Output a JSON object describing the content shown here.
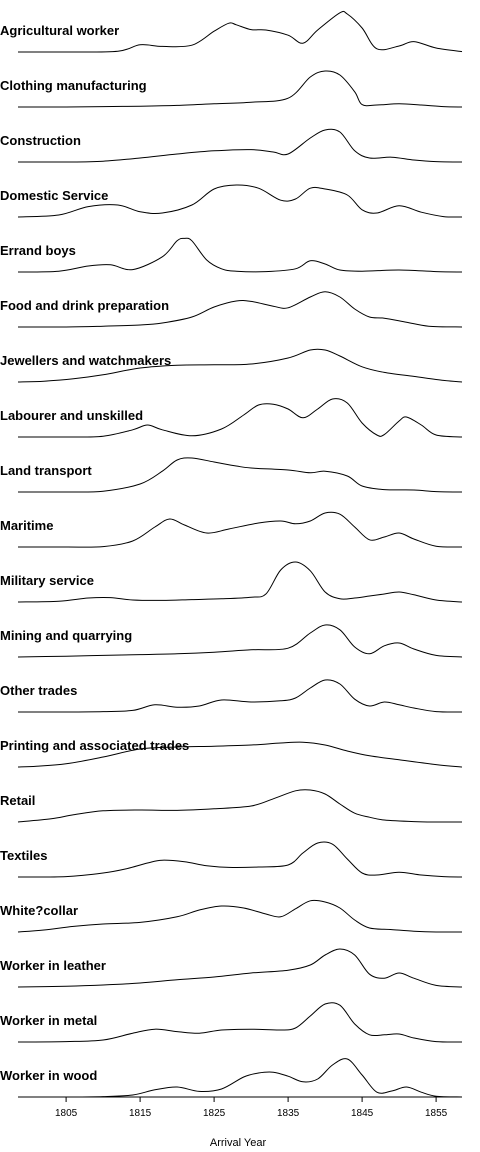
{
  "chart_data": {
    "type": "ridgeline",
    "xlabel": "Arrival Year",
    "xlim": [
      1798.5,
      1858.5
    ],
    "xticks": [
      1805,
      1815,
      1825,
      1835,
      1845,
      1855
    ],
    "categories": [
      "Agricultural worker",
      "Clothing manufacturing",
      "Construction",
      "Domestic Service",
      "Errand boys",
      "Food and drink preparation",
      "Jewellers and watchmakers",
      "Labourer and unskilled",
      "Land transport",
      "Maritime",
      "Military service",
      "Mining and quarrying",
      "Other trades",
      "Printing and associated trades",
      "Retail",
      "Textiles",
      "White?collar",
      "Worker in leather",
      "Worker in metal",
      "Worker in wood"
    ],
    "series": [
      {
        "name": "Agricultural worker",
        "x": [
          1798.5,
          1805,
          1812,
          1815,
          1818,
          1822,
          1825,
          1827,
          1828,
          1830,
          1832,
          1835,
          1837,
          1839,
          1842,
          1843,
          1845,
          1847,
          1850,
          1852,
          1855,
          1858.5
        ],
        "y": [
          0,
          0,
          0.02,
          0.18,
          0.14,
          0.17,
          0.52,
          0.72,
          0.68,
          0.56,
          0.55,
          0.42,
          0.22,
          0.55,
          0.98,
          0.95,
          0.6,
          0.08,
          0.15,
          0.26,
          0.1,
          0.01
        ]
      },
      {
        "name": "Clothing manufacturing",
        "x": [
          1798.5,
          1805,
          1810,
          1815,
          1820,
          1825,
          1830,
          1835,
          1838,
          1840,
          1842,
          1844,
          1845,
          1847,
          1850,
          1853,
          1856,
          1858.5
        ],
        "y": [
          0,
          0,
          0.01,
          0.02,
          0.04,
          0.08,
          0.12,
          0.22,
          0.75,
          0.9,
          0.8,
          0.38,
          0.06,
          0.05,
          0.08,
          0.05,
          0.01,
          0
        ]
      },
      {
        "name": "Construction",
        "x": [
          1798.5,
          1805,
          1810,
          1815,
          1820,
          1825,
          1830,
          1833,
          1835,
          1838,
          1840,
          1842,
          1844,
          1846,
          1849,
          1852,
          1855,
          1858.5
        ],
        "y": [
          0,
          0,
          0.02,
          0.1,
          0.2,
          0.28,
          0.31,
          0.25,
          0.2,
          0.6,
          0.8,
          0.75,
          0.28,
          0.1,
          0.12,
          0.05,
          0.01,
          0
        ]
      },
      {
        "name": "Domestic Service",
        "x": [
          1798.5,
          1804,
          1808,
          1812,
          1815,
          1818,
          1822,
          1825,
          1828,
          1831,
          1834,
          1836,
          1838,
          1840,
          1843,
          1845,
          1847,
          1850,
          1853,
          1856,
          1858.5
        ],
        "y": [
          0,
          0.05,
          0.26,
          0.3,
          0.13,
          0.1,
          0.3,
          0.7,
          0.8,
          0.72,
          0.42,
          0.45,
          0.72,
          0.7,
          0.55,
          0.18,
          0.1,
          0.28,
          0.12,
          0.01,
          0
        ]
      },
      {
        "name": "Errand boys",
        "x": [
          1798.5,
          1804,
          1808,
          1811,
          1814,
          1818,
          1820,
          1821,
          1822,
          1824,
          1826,
          1828,
          1832,
          1836,
          1838,
          1840,
          1842,
          1845,
          1850,
          1855,
          1858.5
        ],
        "y": [
          0,
          0.02,
          0.15,
          0.18,
          0.06,
          0.38,
          0.78,
          0.84,
          0.78,
          0.3,
          0.08,
          0.02,
          0.01,
          0.08,
          0.28,
          0.2,
          0.05,
          0.02,
          0.05,
          0.01,
          0
        ]
      },
      {
        "name": "Food and drink preparation",
        "x": [
          1798.5,
          1805,
          1810,
          1815,
          1818,
          1822,
          1825,
          1828,
          1830,
          1833,
          1835,
          1838,
          1840,
          1842,
          1844,
          1846,
          1848,
          1851,
          1854,
          1858.5
        ],
        "y": [
          0,
          0,
          0.02,
          0.05,
          0.1,
          0.25,
          0.5,
          0.65,
          0.64,
          0.52,
          0.48,
          0.75,
          0.88,
          0.75,
          0.45,
          0.25,
          0.22,
          0.12,
          0.02,
          0
        ]
      },
      {
        "name": "Jewellers and watchmakers",
        "x": [
          1798.5,
          1802,
          1806,
          1810,
          1815,
          1820,
          1825,
          1830,
          1835,
          1838,
          1840,
          1842,
          1845,
          1848,
          1852,
          1856,
          1858.5
        ],
        "y": [
          0,
          0.02,
          0.08,
          0.18,
          0.35,
          0.42,
          0.43,
          0.45,
          0.6,
          0.8,
          0.8,
          0.65,
          0.38,
          0.24,
          0.14,
          0.04,
          0
        ]
      },
      {
        "name": "Labourer and unskilled",
        "x": [
          1798.5,
          1805,
          1810,
          1814,
          1816,
          1818,
          1822,
          1826,
          1829,
          1831,
          1833,
          1835,
          1837,
          1839,
          1841,
          1843,
          1845,
          1847,
          1848,
          1850,
          1851,
          1853,
          1855,
          1858.5
        ],
        "y": [
          0,
          0,
          0.02,
          0.18,
          0.3,
          0.18,
          0.03,
          0.2,
          0.55,
          0.8,
          0.82,
          0.7,
          0.48,
          0.7,
          0.95,
          0.85,
          0.35,
          0.05,
          0.06,
          0.4,
          0.5,
          0.3,
          0.05,
          0
        ]
      },
      {
        "name": "Land transport",
        "x": [
          1798.5,
          1805,
          1810,
          1815,
          1818,
          1820,
          1822,
          1825,
          1828,
          1830,
          1835,
          1838,
          1840,
          1843,
          1845,
          1848,
          1852,
          1855,
          1858.5
        ],
        "y": [
          0,
          0,
          0.02,
          0.2,
          0.52,
          0.8,
          0.85,
          0.75,
          0.65,
          0.6,
          0.55,
          0.48,
          0.52,
          0.4,
          0.15,
          0.06,
          0.05,
          0.01,
          0
        ]
      },
      {
        "name": "Maritime",
        "x": [
          1798.5,
          1805,
          1810,
          1814,
          1817,
          1819,
          1821,
          1824,
          1827,
          1831,
          1834,
          1836,
          1838,
          1840,
          1842,
          1844,
          1846,
          1848,
          1850,
          1852,
          1855,
          1858.5
        ],
        "y": [
          0,
          0,
          0.01,
          0.15,
          0.5,
          0.7,
          0.55,
          0.35,
          0.45,
          0.6,
          0.65,
          0.58,
          0.65,
          0.85,
          0.82,
          0.5,
          0.18,
          0.25,
          0.35,
          0.2,
          0.02,
          0
        ]
      },
      {
        "name": "Military service",
        "x": [
          1798.5,
          1804,
          1808,
          1811,
          1814,
          1818,
          1822,
          1826,
          1830,
          1832,
          1834,
          1836,
          1838,
          1840,
          1842,
          1844,
          1846,
          1848,
          1850,
          1852,
          1855,
          1858.5
        ],
        "y": [
          0,
          0.02,
          0.1,
          0.11,
          0.05,
          0.04,
          0.06,
          0.08,
          0.12,
          0.2,
          0.8,
          1.0,
          0.78,
          0.25,
          0.08,
          0.1,
          0.15,
          0.2,
          0.25,
          0.18,
          0.05,
          0
        ]
      },
      {
        "name": "Mining and quarrying",
        "x": [
          1798.5,
          1805,
          1810,
          1815,
          1820,
          1825,
          1830,
          1835,
          1838,
          1840,
          1842,
          1844,
          1846,
          1848,
          1850,
          1852,
          1855,
          1858.5
        ],
        "y": [
          0,
          0.02,
          0.04,
          0.06,
          0.08,
          0.12,
          0.18,
          0.22,
          0.6,
          0.8,
          0.68,
          0.25,
          0.08,
          0.28,
          0.35,
          0.2,
          0.04,
          0
        ]
      },
      {
        "name": "Other trades",
        "x": [
          1798.5,
          1805,
          1810,
          1814,
          1817,
          1820,
          1823,
          1826,
          1830,
          1834,
          1836,
          1838,
          1840,
          1842,
          1844,
          1846,
          1848,
          1850,
          1852,
          1855,
          1858.5
        ],
        "y": [
          0,
          0,
          0.01,
          0.04,
          0.18,
          0.12,
          0.15,
          0.3,
          0.25,
          0.28,
          0.35,
          0.6,
          0.8,
          0.7,
          0.32,
          0.15,
          0.25,
          0.18,
          0.1,
          0.01,
          0
        ]
      },
      {
        "name": "Printing and associated trades",
        "x": [
          1798.5,
          1801,
          1805,
          1810,
          1815,
          1820,
          1825,
          1830,
          1834,
          1837,
          1840,
          1843,
          1846,
          1850,
          1855,
          1858.5
        ],
        "y": [
          0,
          0.02,
          0.08,
          0.25,
          0.45,
          0.5,
          0.52,
          0.55,
          0.6,
          0.62,
          0.55,
          0.4,
          0.28,
          0.18,
          0.06,
          0
        ]
      },
      {
        "name": "Retail",
        "x": [
          1798.5,
          1803,
          1806,
          1810,
          1815,
          1820,
          1825,
          1830,
          1833,
          1836,
          1838,
          1840,
          1842,
          1844,
          1846,
          1848,
          1852,
          1855,
          1858.5
        ],
        "y": [
          0,
          0.08,
          0.18,
          0.28,
          0.3,
          0.29,
          0.33,
          0.4,
          0.58,
          0.78,
          0.8,
          0.7,
          0.45,
          0.22,
          0.12,
          0.05,
          0.01,
          0,
          0
        ]
      },
      {
        "name": "Textiles",
        "x": [
          1798.5,
          1805,
          1810,
          1813,
          1816,
          1818,
          1821,
          1824,
          1827,
          1831,
          1835,
          1837,
          1839,
          1841,
          1843,
          1845,
          1847,
          1850,
          1853,
          1856,
          1858.5
        ],
        "y": [
          0,
          0.01,
          0.1,
          0.2,
          0.35,
          0.42,
          0.38,
          0.28,
          0.24,
          0.25,
          0.3,
          0.6,
          0.85,
          0.82,
          0.45,
          0.1,
          0.05,
          0.12,
          0.05,
          0.01,
          0
        ]
      },
      {
        "name": "White?collar",
        "x": [
          1798.5,
          1802,
          1806,
          1810,
          1815,
          1820,
          1823,
          1826,
          1829,
          1832,
          1834,
          1836,
          1838,
          1840,
          1842,
          1844,
          1846,
          1849,
          1852,
          1855,
          1858.5
        ],
        "y": [
          0,
          0.05,
          0.14,
          0.2,
          0.24,
          0.38,
          0.55,
          0.65,
          0.6,
          0.45,
          0.38,
          0.58,
          0.78,
          0.75,
          0.6,
          0.3,
          0.1,
          0.06,
          0.02,
          0,
          0
        ]
      },
      {
        "name": "Worker in leather",
        "x": [
          1798.5,
          1805,
          1810,
          1815,
          1820,
          1825,
          1830,
          1835,
          1838,
          1840,
          1842,
          1844,
          1846,
          1848,
          1850,
          1852,
          1855,
          1858.5
        ],
        "y": [
          0,
          0.02,
          0.05,
          0.1,
          0.18,
          0.25,
          0.35,
          0.42,
          0.55,
          0.8,
          0.95,
          0.8,
          0.32,
          0.22,
          0.35,
          0.22,
          0.04,
          0
        ]
      },
      {
        "name": "Worker in metal",
        "x": [
          1798.5,
          1805,
          1810,
          1814,
          1817,
          1820,
          1823,
          1826,
          1830,
          1834,
          1836,
          1838,
          1840,
          1842,
          1844,
          1846,
          1848,
          1850,
          1852,
          1855,
          1858.5
        ],
        "y": [
          0,
          0.01,
          0.05,
          0.22,
          0.32,
          0.26,
          0.22,
          0.3,
          0.32,
          0.3,
          0.35,
          0.65,
          0.95,
          0.92,
          0.45,
          0.18,
          0.18,
          0.2,
          0.1,
          0.01,
          0
        ]
      },
      {
        "name": "Worker in wood",
        "x": [
          1798.5,
          1805,
          1810,
          1814,
          1817,
          1820,
          1823,
          1826,
          1829,
          1831,
          1833,
          1835,
          1837,
          1839,
          1841,
          1843,
          1845,
          1847,
          1849,
          1851,
          1853,
          1855,
          1858.5
        ],
        "y": [
          0,
          0,
          0.01,
          0.05,
          0.18,
          0.25,
          0.14,
          0.2,
          0.5,
          0.6,
          0.62,
          0.52,
          0.38,
          0.45,
          0.8,
          0.95,
          0.55,
          0.12,
          0.15,
          0.25,
          0.12,
          0.02,
          0
        ]
      }
    ]
  }
}
